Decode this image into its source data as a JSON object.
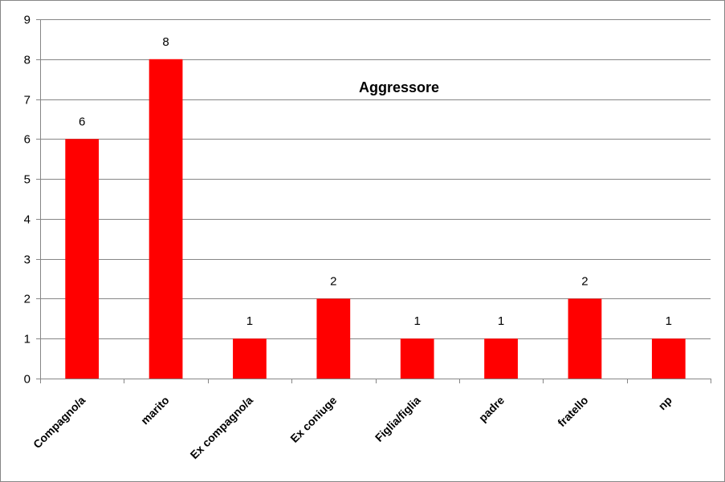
{
  "chart_data": {
    "type": "bar",
    "title": "Aggressore",
    "xlabel": "",
    "ylabel": "",
    "categories": [
      "Compagno/a",
      "marito",
      "Ex compagno/a",
      "Ex coniuge",
      "Figlia/figlia",
      "padre",
      "fratello",
      "np"
    ],
    "values": [
      6,
      8,
      1,
      2,
      1,
      1,
      2,
      1
    ],
    "ylim": [
      0,
      9
    ],
    "yticks": [
      "0",
      "1",
      "2",
      "3",
      "4",
      "5",
      "6",
      "7",
      "8",
      "9"
    ],
    "grid": true,
    "legend": "none",
    "bar_color": "#ff0000",
    "grid_color": "#868686",
    "data_labels": true
  }
}
